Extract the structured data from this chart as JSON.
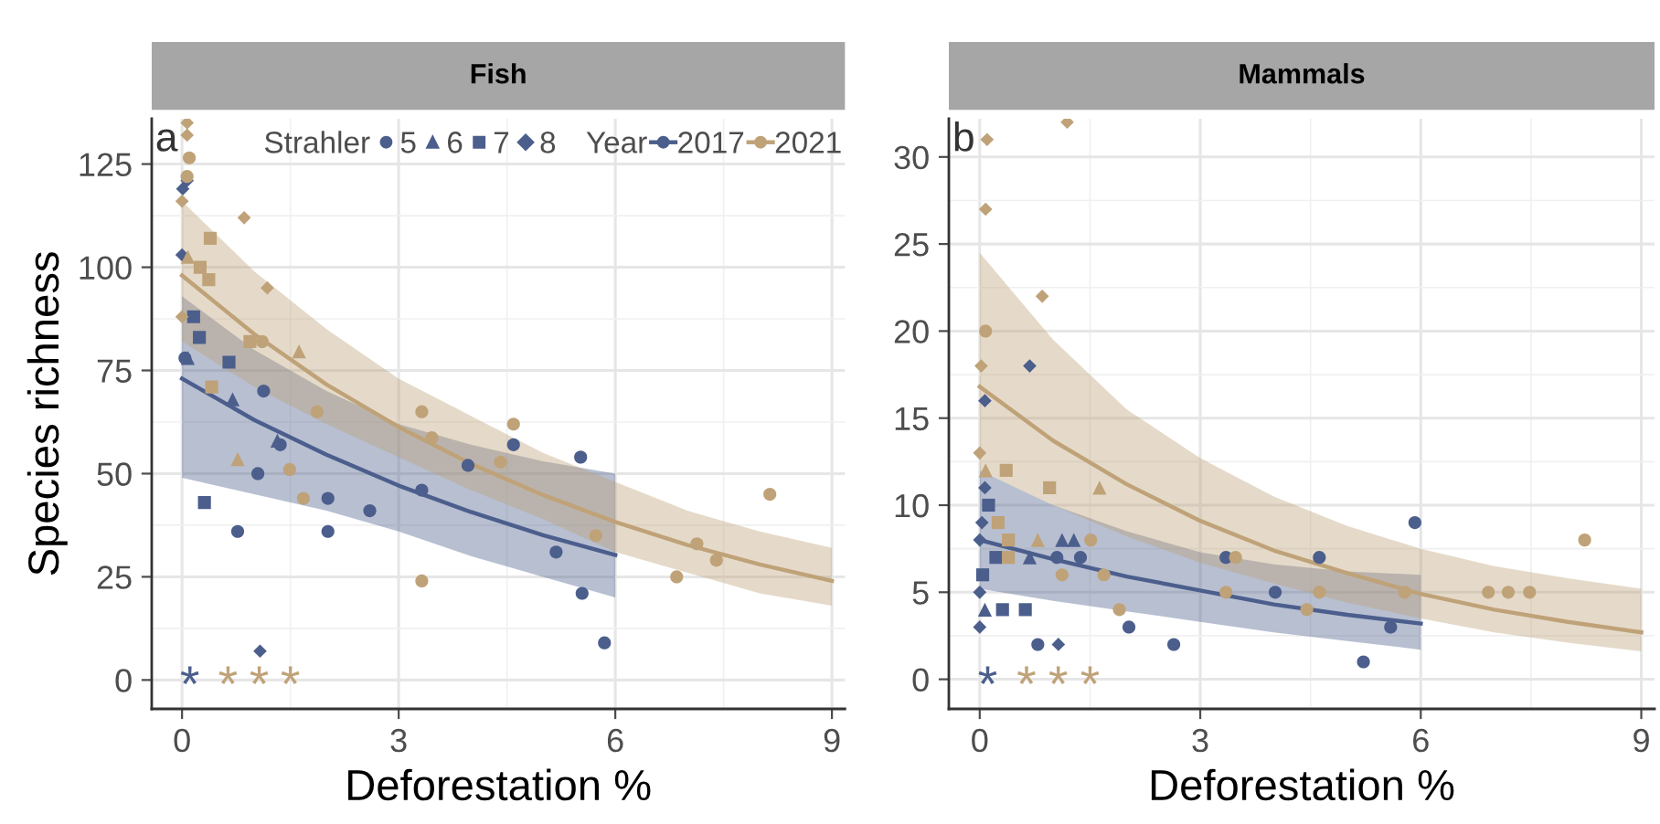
{
  "chart_data": [
    {
      "type": "scatter",
      "title": "Fish",
      "subtitle": "a",
      "xlabel": "Deforestation %",
      "ylabel": "Species richness",
      "xlim": [
        -0.42,
        9.18
      ],
      "ylim": [
        -7,
        136
      ],
      "xticks": [
        0,
        3,
        6,
        9
      ],
      "yticks": [
        0,
        25,
        50,
        75,
        100,
        125
      ],
      "grid": true,
      "legend": "top",
      "legend_title": "Strahler",
      "annotations": [
        "Year",
        "*",
        "*",
        "*",
        "*"
      ],
      "series": [
        {
          "type": "line",
          "name": "2017",
          "color": "#4b5e8c",
          "x": [
            0,
            1,
            2,
            3,
            4,
            5,
            6
          ],
          "values": [
            73,
            63,
            54.6,
            47.1,
            40.7,
            35.1,
            30.3
          ],
          "lower": [
            49,
            45,
            41,
            36,
            30,
            25,
            20
          ],
          "upper": [
            93,
            80,
            70,
            62,
            57,
            53,
            50
          ]
        },
        {
          "type": "line",
          "name": "2021",
          "color": "#bfa278",
          "x": [
            0,
            1,
            2,
            3,
            4,
            5,
            6,
            7,
            8,
            9
          ],
          "values": [
            98,
            83.8,
            71.6,
            61.3,
            52.4,
            44.8,
            38.3,
            32.7,
            28,
            24
          ],
          "lower": [
            82,
            71,
            62,
            54,
            46,
            39,
            31,
            26,
            21,
            18
          ],
          "upper": [
            116,
            99,
            85,
            73,
            64,
            55,
            48,
            41,
            36,
            32
          ]
        },
        {
          "name": "5",
          "color": "#4b5e8c",
          "marker": "circle",
          "x": [
            0.04,
            1.13,
            1.36,
            1.05,
            2.02,
            2.02,
            0.77,
            2.6,
            3.32,
            4.59,
            3.96,
            5.52,
            5.18,
            5.54,
            5.85
          ],
          "values": [
            78,
            70,
            57,
            50,
            44,
            36,
            36,
            41,
            46,
            57,
            52,
            54,
            31,
            21,
            9
          ]
        },
        {
          "type": "scatter",
          "name": "6",
          "color": "#4b5e8c",
          "marker": "triangle",
          "x": [
            0.08,
            0.7,
            1.32
          ],
          "values": [
            78,
            68,
            58
          ]
        },
        {
          "type": "scatter",
          "name": "7",
          "color": "#4b5e8c",
          "marker": "square",
          "x": [
            0.16,
            0.24,
            0.65,
            0.31
          ],
          "values": [
            88,
            83,
            77,
            43
          ]
        },
        {
          "type": "scatter",
          "name": "8",
          "color": "#4b5e8c",
          "marker": "diamond",
          "x": [
            0.01,
            0.07,
            0.0,
            1.08
          ],
          "values": [
            119,
            121,
            103,
            7
          ]
        },
        {
          "type": "scatter",
          "color": "#bfa278",
          "marker": "circle",
          "x": [
            0.1,
            0.07,
            1.11,
            1.87,
            3.32,
            3.46,
            1.49,
            1.68,
            3.32,
            4.59,
            4.41,
            5.73,
            6.85,
            7.13,
            7.4,
            8.14
          ],
          "values": [
            126.5,
            122,
            82,
            65,
            65,
            58.7,
            51,
            44,
            24,
            62,
            52.8,
            35,
            25,
            33,
            29,
            45
          ]
        },
        {
          "type": "scatter",
          "color": "#bfa278",
          "marker": "triangle",
          "x": [
            0.08,
            1.62,
            0.77
          ],
          "values": [
            102.5,
            79.6,
            53.5
          ]
        },
        {
          "type": "scatter",
          "color": "#bfa278",
          "marker": "square",
          "x": [
            0.39,
            0.25,
            0.37,
            0.94,
            0.41
          ],
          "values": [
            107,
            100,
            97,
            82,
            71
          ]
        },
        {
          "type": "scatter",
          "color": "#bfa278",
          "marker": "diamond",
          "x": [
            0.07,
            0.07,
            0.0,
            0.86,
            1.18,
            0.0
          ],
          "values": [
            135,
            132,
            116,
            112,
            95,
            88
          ]
        }
      ]
    },
    {
      "type": "scatter",
      "title": "Mammals",
      "subtitle": "b",
      "xlabel": "Deforestation %",
      "xlim": [
        -0.42,
        9.18
      ],
      "ylim": [
        -1.7,
        32.2
      ],
      "xticks": [
        0,
        3,
        6,
        9
      ],
      "yticks": [
        0,
        5,
        10,
        15,
        20,
        25,
        30
      ],
      "grid": true,
      "annotations": [
        "*",
        "*",
        "*",
        "*"
      ],
      "series": [
        {
          "type": "line",
          "color": "#4b5e8c",
          "x": [
            0,
            1,
            2,
            3,
            4,
            5,
            6
          ],
          "values": [
            8,
            6.9,
            5.9,
            5.1,
            4.3,
            3.7,
            3.2
          ],
          "lower": [
            5.2,
            4.5,
            3.9,
            3.3,
            2.7,
            2.2,
            1.7
          ],
          "upper": [
            12,
            10,
            8.5,
            7.3,
            6.6,
            6.2,
            6.0
          ]
        },
        {
          "type": "line",
          "color": "#bfa278",
          "x": [
            0,
            1,
            2,
            3,
            4,
            5,
            6,
            7,
            8,
            9
          ],
          "values": [
            16.8,
            13.7,
            11.2,
            9.1,
            7.4,
            6.1,
            4.9,
            4.0,
            3.3,
            2.7
          ],
          "lower": [
            12,
            10,
            8.2,
            6.7,
            5.5,
            4.4,
            3.5,
            2.7,
            2.1,
            1.6
          ],
          "upper": [
            24.5,
            19.5,
            15.5,
            12.7,
            10.5,
            8.8,
            7.5,
            6.5,
            5.8,
            5.2
          ]
        },
        {
          "type": "scatter",
          "color": "#4b5e8c",
          "marker": "circle",
          "x": [
            1.05,
            1.37,
            0.79,
            2.03,
            2.64,
            3.35,
            4.02,
            4.62,
            5.59,
            5.22,
            5.92
          ],
          "values": [
            7,
            7,
            2,
            3,
            2,
            7,
            5,
            7,
            3,
            1,
            9
          ]
        },
        {
          "type": "scatter",
          "color": "#4b5e8c",
          "marker": "triangle",
          "x": [
            0.68,
            1.12,
            1.28,
            0.07
          ],
          "values": [
            7,
            8,
            8,
            4
          ]
        },
        {
          "type": "scatter",
          "color": "#4b5e8c",
          "marker": "square",
          "x": [
            0.12,
            0.22,
            0.04,
            0.31,
            0.62
          ],
          "values": [
            10,
            7,
            6,
            4,
            4
          ]
        },
        {
          "type": "scatter",
          "color": "#4b5e8c",
          "marker": "diamond",
          "x": [
            0.07,
            0.68,
            0.07,
            0.03,
            0.0,
            0.0,
            0.0,
            1.07
          ],
          "values": [
            16,
            18,
            11,
            9,
            8,
            5,
            3,
            2
          ]
        },
        {
          "type": "scatter",
          "color": "#bfa278",
          "marker": "circle",
          "x": [
            0.08,
            1.51,
            1.12,
            1.69,
            1.9,
            3.35,
            3.48,
            4.62,
            4.45,
            5.78,
            6.92,
            7.19,
            7.48,
            8.23
          ],
          "values": [
            20,
            8,
            6,
            6,
            4,
            5,
            7,
            5,
            4,
            5,
            5,
            5,
            5,
            8
          ]
        },
        {
          "type": "scatter",
          "color": "#bfa278",
          "marker": "triangle",
          "x": [
            0.08,
            1.63,
            0.79
          ],
          "values": [
            12,
            11,
            8
          ]
        },
        {
          "type": "scatter",
          "color": "#bfa278",
          "marker": "square",
          "x": [
            0.36,
            0.95,
            0.25,
            0.39,
            0.39
          ],
          "values": [
            12,
            11,
            9,
            8,
            7
          ]
        },
        {
          "type": "scatter",
          "color": "#bfa278",
          "marker": "diamond",
          "x": [
            0.1,
            1.19,
            0.08,
            0.85,
            0.02,
            0.0
          ],
          "values": [
            31,
            32,
            27,
            22,
            18,
            13
          ]
        }
      ]
    }
  ]
}
